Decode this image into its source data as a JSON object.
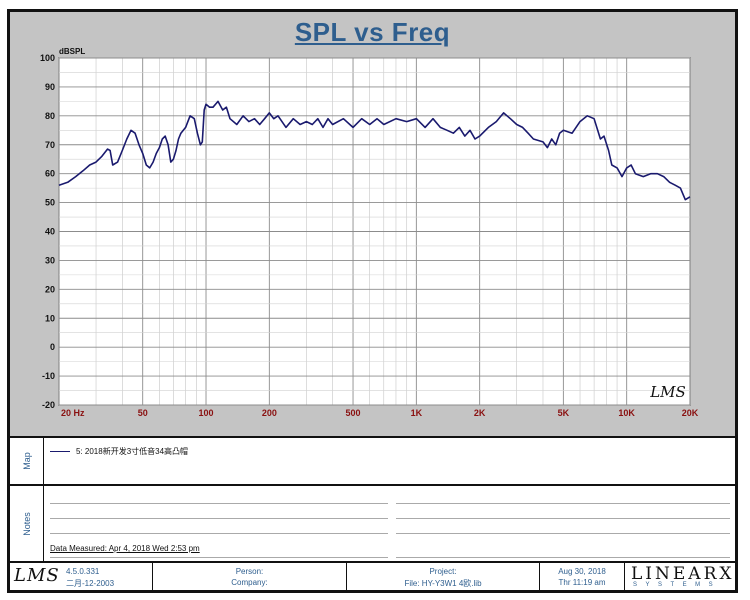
{
  "chart_data": {
    "type": "line",
    "title": "SPL vs Freq",
    "ylabel": "dBSPL",
    "xlabel": "",
    "xscale": "log",
    "xlim": [
      20,
      20000
    ],
    "ylim": [
      -20,
      100
    ],
    "yticks": [
      100,
      90,
      80,
      70,
      60,
      50,
      40,
      30,
      20,
      10,
      0,
      -10,
      -20
    ],
    "xtick_labels": [
      {
        "f": 20,
        "label": "20  Hz"
      },
      {
        "f": 50,
        "label": "50"
      },
      {
        "f": 100,
        "label": "100"
      },
      {
        "f": 200,
        "label": "200"
      },
      {
        "f": 500,
        "label": "500"
      },
      {
        "f": 1000,
        "label": "1K"
      },
      {
        "f": 2000,
        "label": "2K"
      },
      {
        "f": 5000,
        "label": "5K"
      },
      {
        "f": 10000,
        "label": "10K"
      },
      {
        "f": 20000,
        "label": "20K"
      }
    ],
    "watermark": "LMS",
    "series": [
      {
        "name": "5: 2018新开发3寸低音34高凸帽",
        "color": "#1a1a6e",
        "points": [
          [
            20,
            56
          ],
          [
            22,
            57
          ],
          [
            24,
            59
          ],
          [
            26,
            61
          ],
          [
            28,
            63
          ],
          [
            30,
            64
          ],
          [
            32,
            66
          ],
          [
            34,
            68.5
          ],
          [
            35,
            68
          ],
          [
            36,
            63
          ],
          [
            38,
            64
          ],
          [
            40,
            68
          ],
          [
            42,
            72
          ],
          [
            44,
            75
          ],
          [
            46,
            74
          ],
          [
            48,
            70
          ],
          [
            50,
            67
          ],
          [
            52,
            63
          ],
          [
            54,
            62
          ],
          [
            56,
            64
          ],
          [
            58,
            67
          ],
          [
            60,
            69
          ],
          [
            62,
            72
          ],
          [
            64,
            73
          ],
          [
            66,
            70
          ],
          [
            68,
            64
          ],
          [
            70,
            65
          ],
          [
            72,
            68
          ],
          [
            74,
            72
          ],
          [
            76,
            74
          ],
          [
            80,
            76
          ],
          [
            84,
            80
          ],
          [
            88,
            79
          ],
          [
            91,
            74
          ],
          [
            94,
            70
          ],
          [
            96,
            71
          ],
          [
            98,
            82
          ],
          [
            100,
            84
          ],
          [
            104,
            83
          ],
          [
            108,
            83
          ],
          [
            114,
            85
          ],
          [
            120,
            82
          ],
          [
            125,
            83
          ],
          [
            130,
            79
          ],
          [
            140,
            77
          ],
          [
            150,
            80
          ],
          [
            160,
            78
          ],
          [
            170,
            79
          ],
          [
            180,
            77
          ],
          [
            190,
            79
          ],
          [
            200,
            81
          ],
          [
            210,
            79
          ],
          [
            220,
            80
          ],
          [
            240,
            76
          ],
          [
            260,
            79
          ],
          [
            280,
            77
          ],
          [
            300,
            78
          ],
          [
            320,
            77
          ],
          [
            340,
            79
          ],
          [
            360,
            76
          ],
          [
            380,
            79
          ],
          [
            400,
            77
          ],
          [
            450,
            79
          ],
          [
            500,
            76
          ],
          [
            550,
            79
          ],
          [
            600,
            77
          ],
          [
            650,
            79
          ],
          [
            700,
            77
          ],
          [
            800,
            79
          ],
          [
            900,
            78
          ],
          [
            1000,
            79
          ],
          [
            1100,
            76
          ],
          [
            1200,
            79
          ],
          [
            1300,
            76
          ],
          [
            1400,
            75
          ],
          [
            1500,
            74
          ],
          [
            1600,
            76
          ],
          [
            1700,
            73
          ],
          [
            1800,
            75
          ],
          [
            1900,
            72
          ],
          [
            2000,
            73
          ],
          [
            2200,
            76
          ],
          [
            2400,
            78
          ],
          [
            2600,
            81
          ],
          [
            2800,
            79
          ],
          [
            3000,
            77
          ],
          [
            3200,
            76
          ],
          [
            3400,
            74
          ],
          [
            3600,
            72
          ],
          [
            4000,
            71
          ],
          [
            4200,
            69
          ],
          [
            4400,
            72
          ],
          [
            4600,
            70
          ],
          [
            4800,
            74
          ],
          [
            5000,
            75
          ],
          [
            5500,
            74
          ],
          [
            6000,
            78
          ],
          [
            6500,
            80
          ],
          [
            7000,
            79
          ],
          [
            7500,
            72
          ],
          [
            7800,
            73
          ],
          [
            8200,
            68
          ],
          [
            8500,
            63
          ],
          [
            9000,
            62
          ],
          [
            9500,
            59
          ],
          [
            10000,
            62
          ],
          [
            10500,
            63
          ],
          [
            11000,
            60
          ],
          [
            12000,
            59
          ],
          [
            13000,
            60
          ],
          [
            14000,
            60
          ],
          [
            15000,
            59
          ],
          [
            16000,
            57
          ],
          [
            17000,
            56
          ],
          [
            18000,
            55
          ],
          [
            19000,
            51
          ],
          [
            20000,
            52
          ]
        ]
      }
    ]
  },
  "map": {
    "label": "Map",
    "legend_text": "5: 2018新开发3寸低音34高凸帽"
  },
  "notes": {
    "label": "Notes",
    "measured": "Data Measured: Apr  4, 2018  Wed  2:53 pm"
  },
  "footer": {
    "logo": "LMS",
    "version": "4.5.0.331",
    "build_date": "二月-12-2003",
    "person": "Person:",
    "company": "Company:",
    "project": "Project:",
    "file": "File: HY-Y3W1 4欧.lib",
    "date": "Aug 30, 2018",
    "time": "Thr 11:19 am",
    "brand": "LINEARX",
    "brand_sub": "SYSTEMS"
  }
}
